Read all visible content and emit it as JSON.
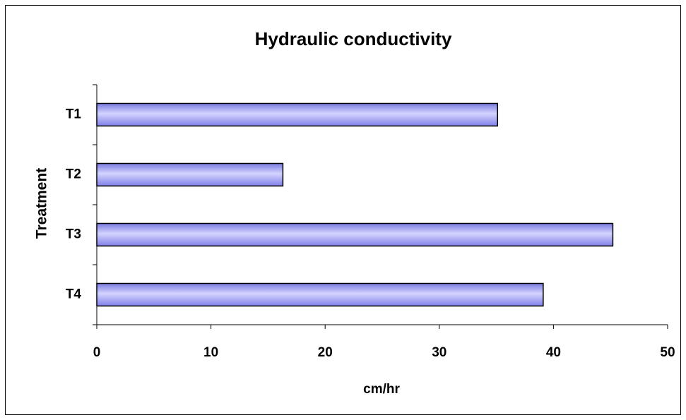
{
  "chart_data": {
    "type": "hbar",
    "title": "Hydraulic conductivity",
    "categories": [
      "T1",
      "T2",
      "T3",
      "T4"
    ],
    "values": [
      35.1,
      16.3,
      45.2,
      39.1
    ],
    "color": "#9999ff",
    "xlim": [
      0,
      50
    ],
    "xticks": [
      0,
      10,
      20,
      30,
      40,
      50
    ],
    "xlabel": "cm/hr",
    "ylabel": "Treatment",
    "grid": false
  }
}
